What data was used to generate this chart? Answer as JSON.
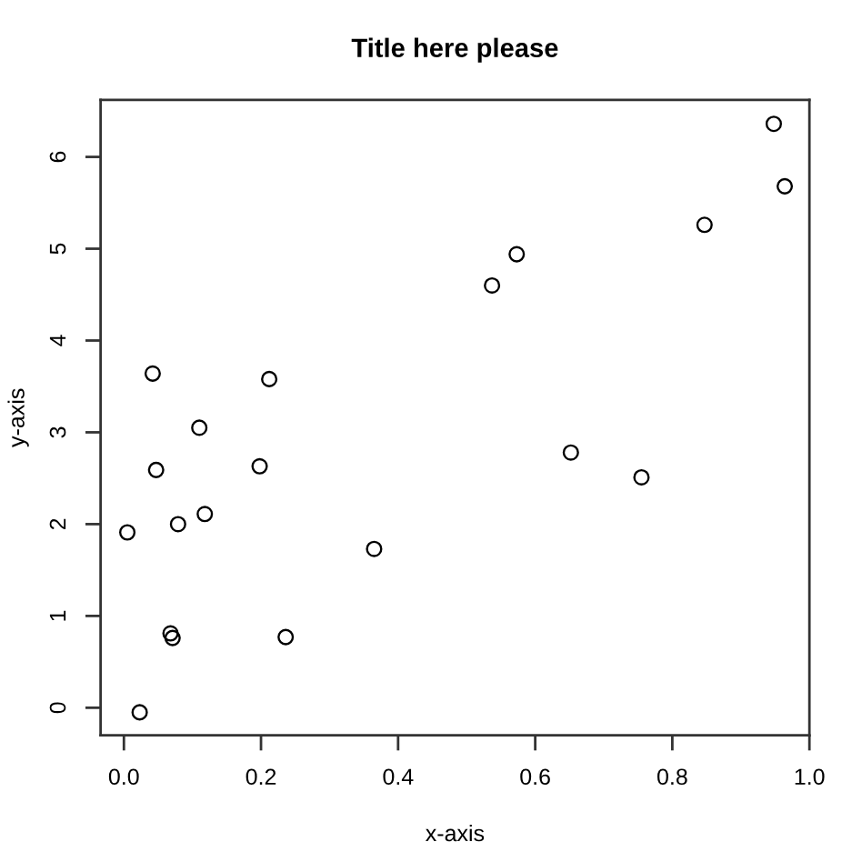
{
  "chart_data": {
    "type": "scatter",
    "title": "Title here please",
    "xlabel": "x-axis",
    "ylabel": "y-axis",
    "x": [
      0.042,
      0.212,
      0.11,
      0.047,
      0.198,
      0.005,
      0.079,
      0.118,
      0.365,
      0.068,
      0.071,
      0.236,
      0.023,
      0.948,
      0.964,
      0.847,
      0.573,
      0.537,
      0.652,
      0.755
    ],
    "series": [
      {
        "color": "#000000",
        "values": [
          3.64,
          3.58,
          3.05,
          2.59,
          2.63,
          1.91,
          2.0,
          2.11,
          1.73,
          0.81,
          0.76,
          0.77,
          -0.05,
          6.36,
          5.68,
          5.26,
          4.94,
          4.6,
          2.78,
          2.51
        ]
      }
    ],
    "xlim": [
      -0.034,
      1.0
    ],
    "ylim": [
      -0.3,
      6.62
    ],
    "xticks": [
      {
        "value": 0,
        "label": "0.0"
      },
      0.2,
      0.4,
      0.6,
      0.8,
      {
        "value": 1,
        "label": "1.0"
      }
    ],
    "yticks": [
      0,
      1,
      2,
      3,
      4,
      5,
      6
    ],
    "marker": "circle",
    "grid": false
  }
}
